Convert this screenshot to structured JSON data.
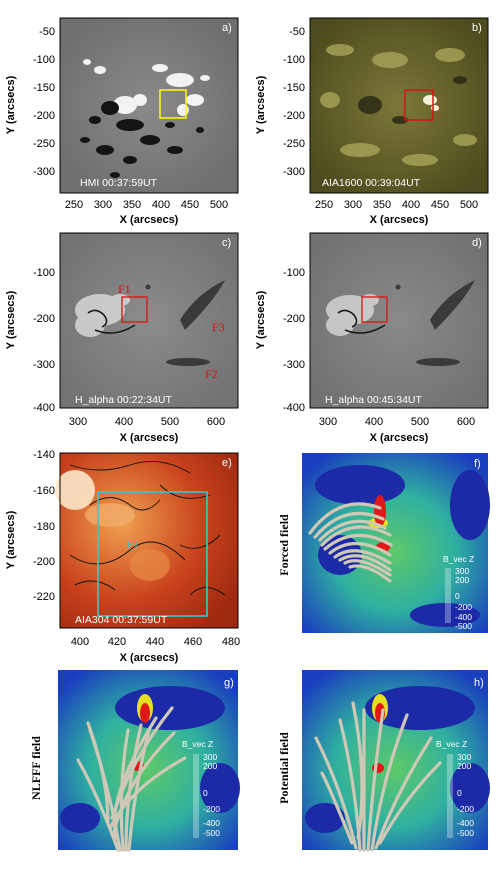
{
  "axis": {
    "x_title": "X (arcsecs)",
    "y_title": "Y (arcsecs)",
    "row1_x_ticks": [
      "250",
      "300",
      "350",
      "400",
      "450",
      "500"
    ],
    "row1_y_ticks": [
      "-50",
      "-100",
      "-150",
      "-200",
      "-250",
      "-300"
    ],
    "row2_x_ticks": [
      "300",
      "400",
      "500",
      "600"
    ],
    "row2_y_ticks": [
      "-100",
      "-200",
      "-300",
      "-400"
    ],
    "row3_x_ticks": [
      "400",
      "420",
      "440",
      "460",
      "480"
    ],
    "row3_y_ticks": [
      "-140",
      "-160",
      "-180",
      "-200",
      "-220"
    ]
  },
  "panels": {
    "a": {
      "letter": "a)",
      "label": "HMI  00:37:59UT"
    },
    "b": {
      "letter": "b)",
      "label": "AIA1600  00:39:04UT"
    },
    "c": {
      "letter": "c)",
      "label": "H_alpha  00:22:34UT",
      "f1": "F1",
      "f2": "F2",
      "f3": "F3"
    },
    "d": {
      "letter": "d)",
      "label": "H_alpha  00:45:34UT"
    },
    "e": {
      "letter": "e)",
      "label": "AIA304  00:37:59UT",
      "f1": "F1"
    },
    "f": {
      "letter": "f)",
      "title": "Forced field"
    },
    "g": {
      "letter": "g)",
      "title": "NLFFF field"
    },
    "h": {
      "letter": "h)",
      "title": "Potential field"
    }
  },
  "colorbar": {
    "title": "B_vec  Z",
    "labels": [
      "300",
      "200",
      "0",
      "-200",
      "-400",
      "-500"
    ]
  },
  "colors": {
    "box_yellow": "#ffff00",
    "box_red": "#e01010",
    "box_cyan": "#30c8d8",
    "label_red": "#e01010"
  }
}
